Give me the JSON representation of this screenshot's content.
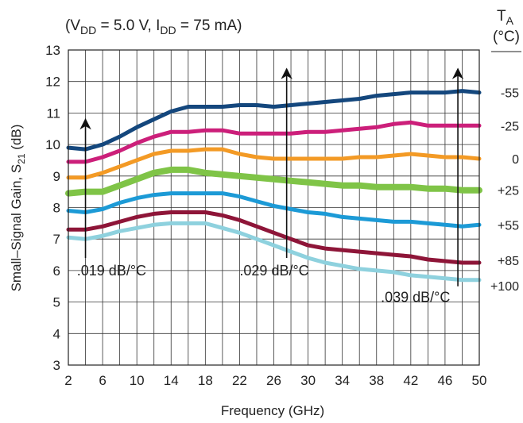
{
  "chart_data": {
    "type": "line",
    "conditions": {
      "prefix": "(V",
      "vdd_sub": "DD",
      "vdd_value": " = 5.0 V,  I",
      "idd_sub": "DD",
      "idd_value": "  = 75 mA)"
    },
    "ylabel": {
      "main": "Small–Signal Gain, S",
      "sub": "21",
      "unit": " (dB)"
    },
    "xlabel": "Frequency (GHz)",
    "xlim": [
      2,
      50
    ],
    "ylim": [
      3,
      13
    ],
    "xticks": [
      2,
      6,
      10,
      14,
      18,
      22,
      26,
      30,
      34,
      38,
      42,
      46,
      50
    ],
    "yticks": [
      3,
      4,
      5,
      6,
      7,
      8,
      9,
      10,
      11,
      12,
      13
    ],
    "grid": true,
    "legend_title": {
      "main": "T",
      "sub": "A",
      "unit": "(°C)"
    },
    "x": [
      2,
      4,
      6,
      8,
      10,
      12,
      14,
      16,
      18,
      20,
      22,
      24,
      26,
      28,
      30,
      32,
      34,
      36,
      38,
      40,
      42,
      44,
      46,
      48,
      50
    ],
    "series": [
      {
        "name": "-55",
        "color": "#14477d",
        "values": [
          9.9,
          9.85,
          10.0,
          10.25,
          10.55,
          10.8,
          11.05,
          11.2,
          11.2,
          11.2,
          11.25,
          11.25,
          11.2,
          11.25,
          11.3,
          11.35,
          11.4,
          11.45,
          11.55,
          11.6,
          11.65,
          11.65,
          11.65,
          11.7,
          11.65
        ]
      },
      {
        "name": "-25",
        "color": "#cc1f7a",
        "values": [
          9.45,
          9.45,
          9.6,
          9.8,
          10.05,
          10.25,
          10.4,
          10.4,
          10.45,
          10.45,
          10.35,
          10.35,
          10.35,
          10.35,
          10.4,
          10.4,
          10.45,
          10.5,
          10.55,
          10.65,
          10.7,
          10.6,
          10.6,
          10.6,
          10.6
        ]
      },
      {
        "name": "0",
        "color": "#f39a25",
        "values": [
          8.95,
          8.95,
          9.1,
          9.3,
          9.5,
          9.7,
          9.8,
          9.8,
          9.85,
          9.85,
          9.7,
          9.6,
          9.55,
          9.55,
          9.55,
          9.55,
          9.55,
          9.6,
          9.6,
          9.65,
          9.7,
          9.65,
          9.6,
          9.6,
          9.55
        ]
      },
      {
        "name": "+25",
        "color": "#7fc447",
        "values": [
          8.45,
          8.5,
          8.5,
          8.7,
          8.9,
          9.1,
          9.2,
          9.2,
          9.1,
          9.05,
          9.0,
          8.95,
          8.9,
          8.85,
          8.8,
          8.75,
          8.7,
          8.7,
          8.65,
          8.65,
          8.65,
          8.6,
          8.6,
          8.55,
          8.55
        ]
      },
      {
        "name": "+55",
        "color": "#1c9ad6",
        "values": [
          7.9,
          7.85,
          7.95,
          8.15,
          8.3,
          8.4,
          8.45,
          8.45,
          8.45,
          8.45,
          8.35,
          8.2,
          8.05,
          7.95,
          7.85,
          7.8,
          7.7,
          7.65,
          7.6,
          7.55,
          7.55,
          7.5,
          7.45,
          7.4,
          7.45
        ]
      },
      {
        "name": "+85",
        "color": "#8e1538",
        "values": [
          7.3,
          7.3,
          7.4,
          7.55,
          7.7,
          7.8,
          7.85,
          7.85,
          7.85,
          7.75,
          7.6,
          7.4,
          7.2,
          7.0,
          6.8,
          6.7,
          6.65,
          6.6,
          6.55,
          6.5,
          6.45,
          6.35,
          6.3,
          6.25,
          6.25
        ]
      },
      {
        "name": "+100",
        "color": "#8ed1de",
        "values": [
          7.05,
          7.0,
          7.1,
          7.25,
          7.35,
          7.45,
          7.5,
          7.5,
          7.5,
          7.35,
          7.2,
          7.0,
          6.8,
          6.6,
          6.4,
          6.25,
          6.15,
          6.05,
          6.0,
          5.95,
          5.85,
          5.8,
          5.75,
          5.7,
          5.7
        ]
      }
    ],
    "annotations": [
      {
        "text": ".019 dB/°C",
        "arrow_x": 4,
        "arrow_from": 6.4,
        "arrow_to": 10.8,
        "label_x": 3.0,
        "label_y": 5.85
      },
      {
        "text": ".029 dB/°C",
        "arrow_x": 27.5,
        "arrow_from": 6.4,
        "arrow_to": 12.4,
        "label_x": 22.0,
        "label_y": 5.85
      },
      {
        "text": ".039 dB/°C",
        "arrow_x": 47.5,
        "arrow_from": 5.5,
        "arrow_to": 12.4,
        "label_x": 38.5,
        "label_y": 5.0
      }
    ]
  }
}
